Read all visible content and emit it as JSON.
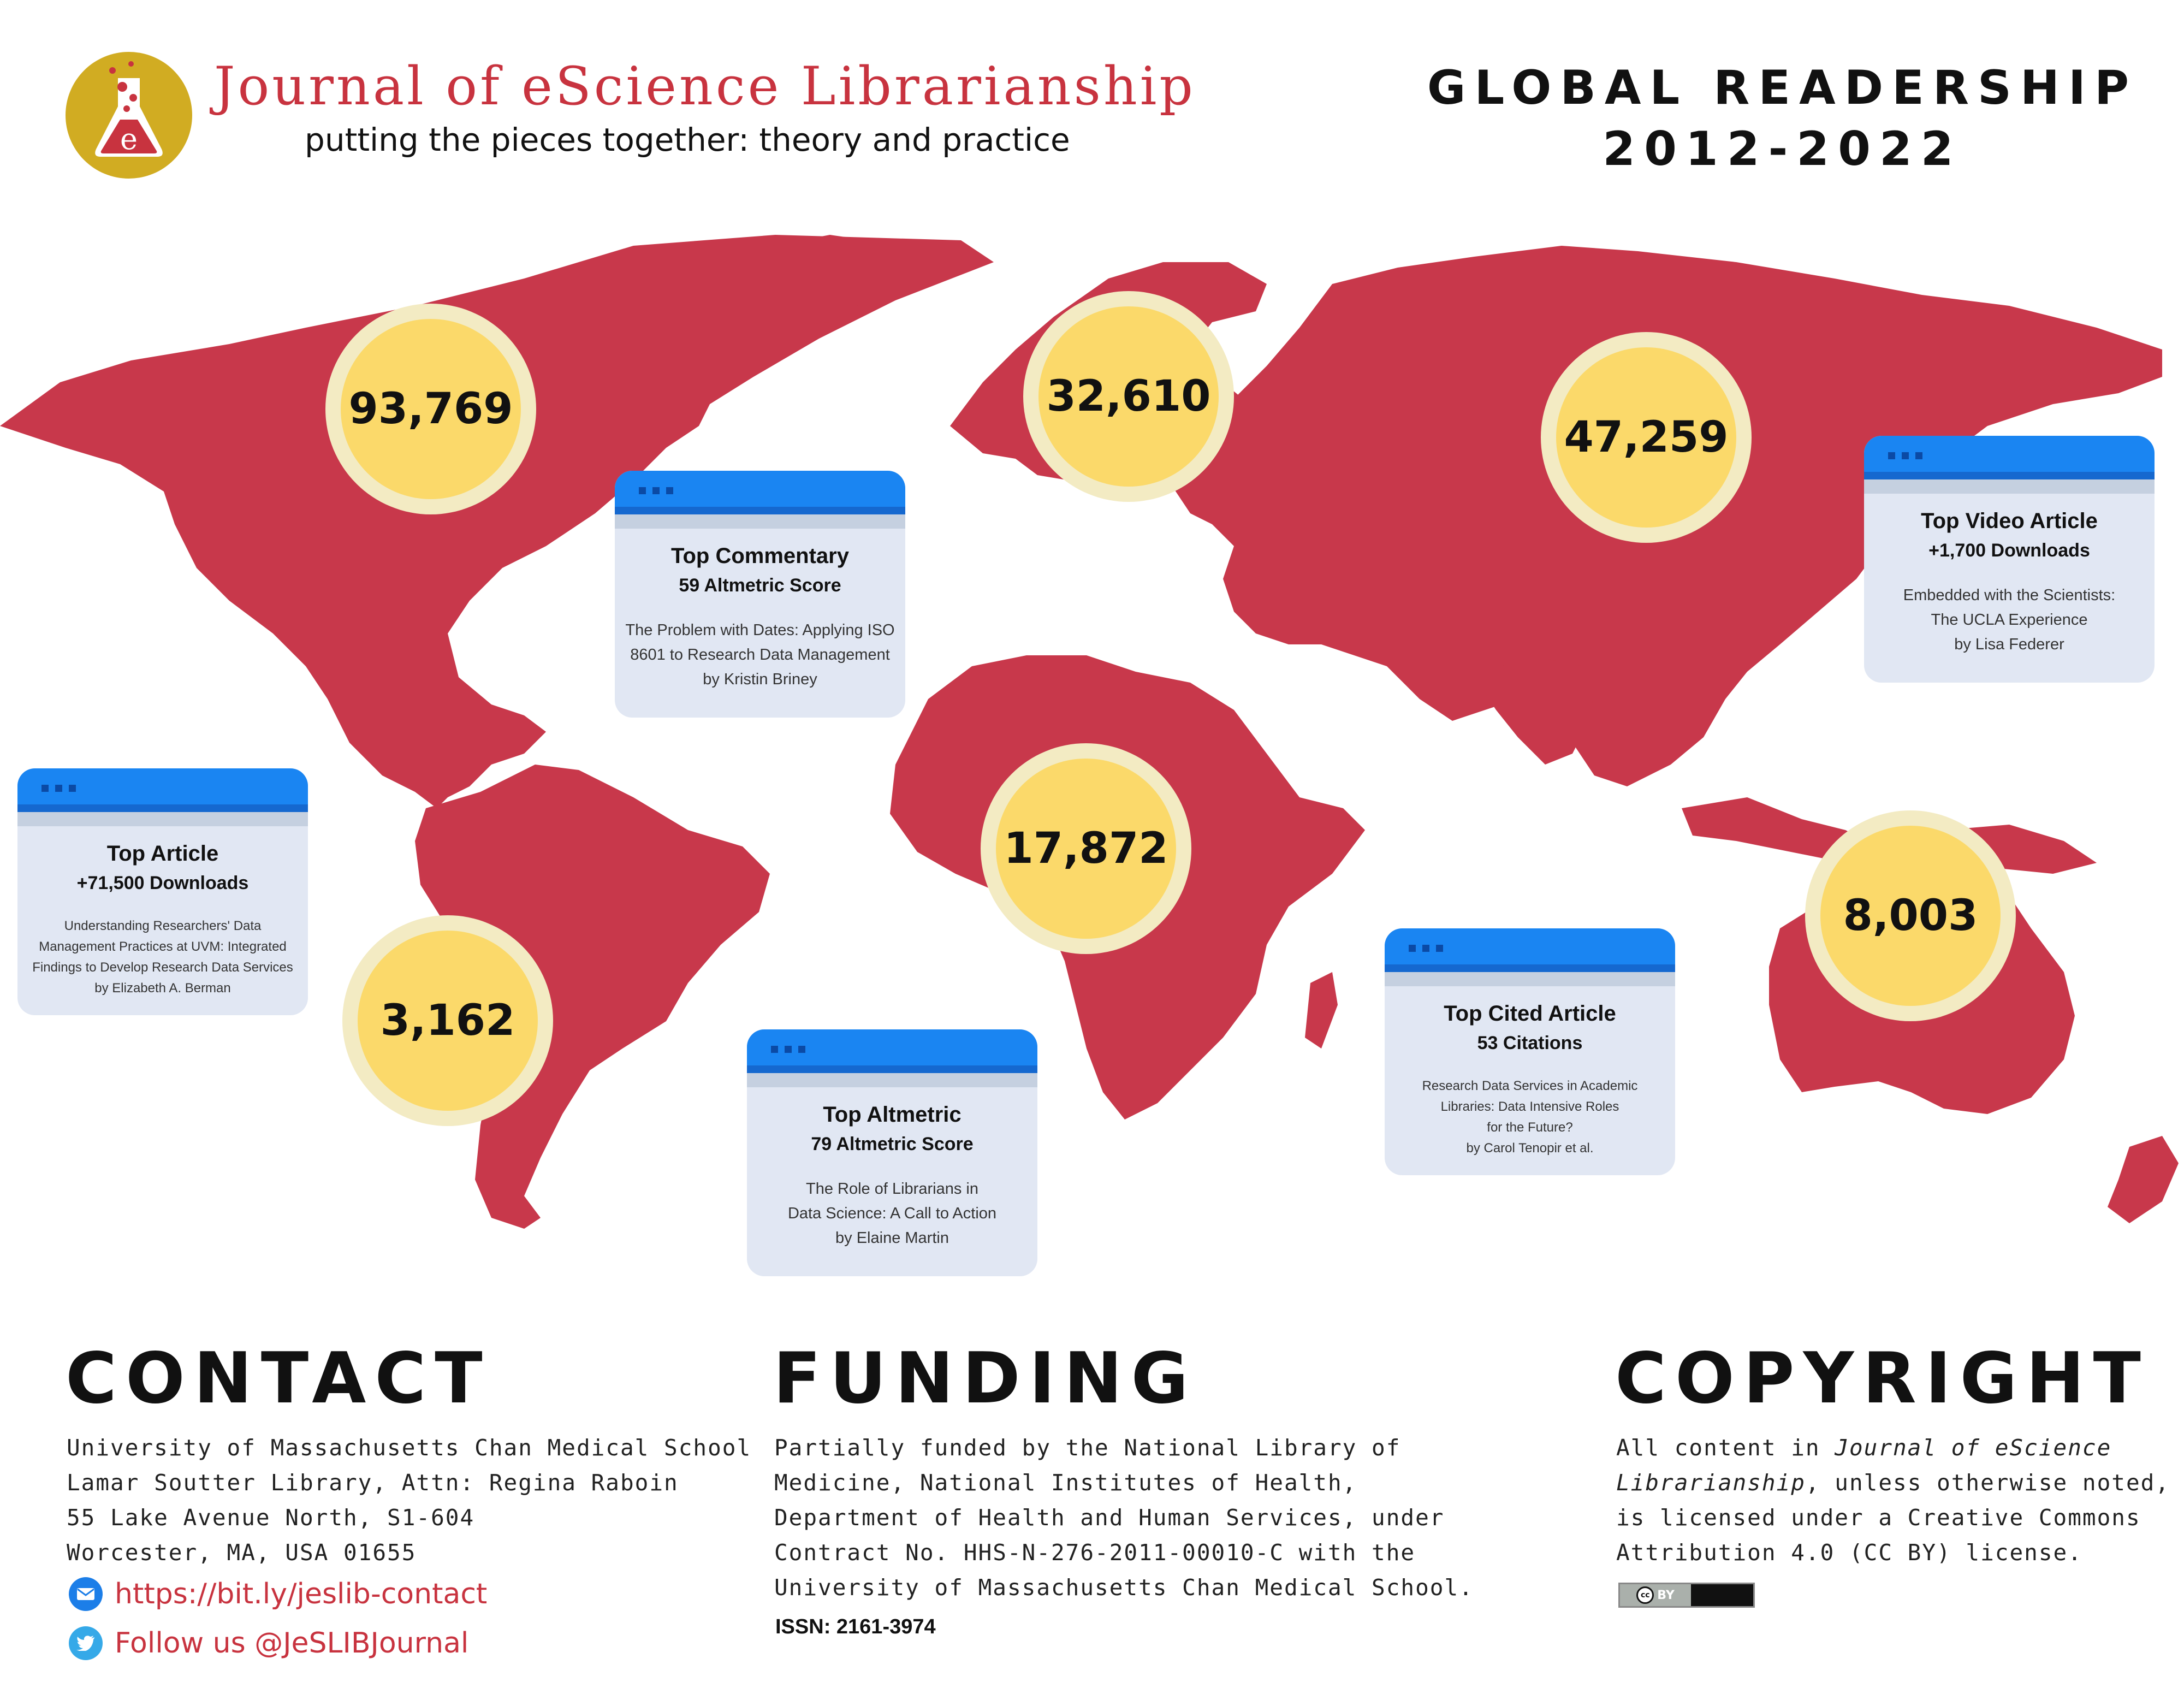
{
  "header": {
    "journal_title": "Journal of eScience Librarianship",
    "tagline": "putting the pieces together: theory and practice",
    "headline_line1": "GLOBAL READERSHIP",
    "headline_line2": "2012-2022",
    "logo_letter": "e"
  },
  "colors": {
    "map_red": "#c8384b",
    "circle_fill": "#fbd96a",
    "circle_ring": "#f3ebc3",
    "card_bar": "#1a85f2",
    "card_bg": "#e1e7f3",
    "brand_red": "#c8333f",
    "logo_gold": "#d1ac22"
  },
  "regions": {
    "north_america": "93,769",
    "europe": "32,610",
    "asia": "47,259",
    "africa": "17,872",
    "oceania": "8,003",
    "south_america": "3,162"
  },
  "cards": {
    "top_article": {
      "title": "Top Article",
      "subtitle": "+71,500 Downloads",
      "lines": [
        "Understanding Researchers' Data",
        "Management Practices at UVM: Integrated",
        "Findings to Develop Research Data Services",
        "by Elizabeth A. Berman"
      ]
    },
    "top_commentary": {
      "title": "Top Commentary",
      "subtitle": "59 Altmetric Score",
      "lines": [
        "The Problem with Dates: Applying ISO",
        "8601 to Research Data Management",
        "by Kristin Briney"
      ]
    },
    "top_altmetric": {
      "title": "Top Altmetric",
      "subtitle": "79 Altmetric Score",
      "lines": [
        "The Role of Librarians in",
        "Data Science: A Call to Action",
        "by Elaine Martin"
      ]
    },
    "top_cited": {
      "title": "Top Cited Article",
      "subtitle": "53 Citations",
      "lines": [
        "Research Data Services in Academic",
        "Libraries: Data Intensive Roles",
        "for the Future?",
        "by Carol Tenopir et al."
      ]
    },
    "top_video": {
      "title": "Top Video Article",
      "subtitle": "+1,700 Downloads",
      "lines": [
        "Embedded with the Scientists:",
        "The UCLA Experience",
        "by Lisa Federer"
      ]
    }
  },
  "contact": {
    "heading": "CONTACT",
    "lines": [
      "University of Massachusetts Chan Medical School",
      "Lamar Soutter Library, Attn: Regina Raboin",
      "55 Lake Avenue North, S1-604",
      "Worcester, MA, USA 01655"
    ],
    "email_icon": "envelope-icon",
    "link": "https://bit.ly/jeslib-contact",
    "twitter_icon": "twitter-bird-icon",
    "social": "Follow us @JeSLIBJournal"
  },
  "funding": {
    "heading": "FUNDING",
    "lines": [
      "Partially funded by the National Library of",
      "Medicine, National Institutes of Health,",
      "Department of Health and Human Services, under",
      "Contract No. HHS-N-276-2011-00010-C with the",
      "University of Massachusetts Chan Medical School."
    ],
    "issn": "ISSN: 2161-3974"
  },
  "copyright": {
    "heading": "COPYRIGHT",
    "line1_prefix": "All content in ",
    "line1_italic": "Journal of eScience",
    "line2_italic": "Librarianship",
    "line2_suffix": ", unless otherwise noted,",
    "line3": "is licensed under a Creative Commons",
    "line4": "Attribution 4.0 (CC BY) license.",
    "badge_cc": "cc",
    "badge_by": "BY"
  }
}
